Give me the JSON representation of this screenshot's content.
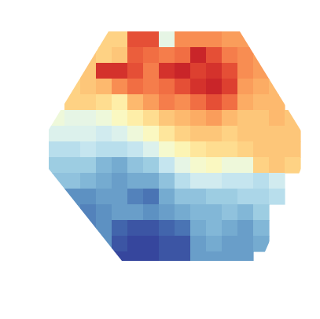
{
  "chart_data": {
    "type": "heatmap",
    "tick_labels": false,
    "zlim": [
      -1,
      1
    ],
    "cells": [
      [
        null,
        null,
        null,
        0.25,
        0.25,
        0.7,
        0.7,
        -0.15,
        0.5,
        0.5,
        0.5,
        0.45,
        0.45,
        null,
        null,
        null
      ],
      [
        null,
        null,
        0.3,
        0.25,
        0.3,
        0.65,
        0.6,
        0.55,
        0.6,
        0.85,
        0.7,
        0.55,
        0.5,
        0.45,
        null,
        null
      ],
      [
        null,
        null,
        0.3,
        0.8,
        0.8,
        0.7,
        0.55,
        0.8,
        0.85,
        0.75,
        0.8,
        0.7,
        0.5,
        0.45,
        null,
        null
      ],
      [
        null,
        0.25,
        0.3,
        0.35,
        0.5,
        0.6,
        0.55,
        0.6,
        0.7,
        0.8,
        0.85,
        0.75,
        0.45,
        0.4,
        0.35,
        null
      ],
      [
        null,
        0.25,
        0.25,
        0.2,
        0.1,
        0.35,
        0.45,
        0.55,
        0.5,
        0.6,
        0.7,
        0.6,
        0.4,
        0.35,
        0.35,
        null
      ],
      [
        -0.1,
        -0.15,
        -0.15,
        -0.1,
        0.0,
        0.1,
        0.2,
        0.3,
        0.35,
        0.4,
        0.45,
        0.35,
        0.3,
        0.3,
        0.35,
        0.3
      ],
      [
        -0.2,
        -0.2,
        -0.2,
        -0.25,
        -0.2,
        -0.1,
        0.0,
        0.15,
        0.25,
        0.3,
        0.3,
        0.25,
        0.3,
        0.3,
        0.3,
        0.3
      ],
      [
        -0.35,
        -0.35,
        -0.3,
        -0.35,
        -0.35,
        -0.3,
        -0.2,
        -0.05,
        0.05,
        0.15,
        0.2,
        0.2,
        0.25,
        0.3,
        0.3,
        0.3
      ],
      [
        -0.45,
        -0.45,
        -0.45,
        -0.55,
        -0.6,
        -0.5,
        -0.45,
        -0.3,
        -0.15,
        -0.05,
        0.0,
        -0.1,
        -0.1,
        0.25,
        0.3,
        0.25
      ],
      [
        -0.5,
        -0.5,
        -0.55,
        -0.6,
        -0.65,
        -0.6,
        -0.6,
        -0.5,
        -0.35,
        -0.25,
        -0.25,
        -0.3,
        -0.3,
        -0.35,
        -0.25,
        null
      ],
      [
        null,
        -0.7,
        -0.7,
        -0.65,
        -0.65,
        -0.75,
        -0.8,
        -0.6,
        -0.5,
        -0.5,
        -0.45,
        -0.45,
        -0.4,
        -0.4,
        -0.35,
        null
      ],
      [
        null,
        -0.7,
        -0.75,
        -0.7,
        -0.65,
        -0.65,
        -0.7,
        -0.65,
        -0.6,
        -0.55,
        -0.55,
        -0.5,
        -0.55,
        -0.45,
        null,
        null
      ],
      [
        null,
        null,
        -0.75,
        -0.7,
        -0.85,
        -0.9,
        -0.9,
        -0.85,
        -0.8,
        -0.6,
        -0.55,
        -0.6,
        -0.65,
        -0.55,
        null,
        null
      ],
      [
        null,
        null,
        null,
        -0.7,
        -0.9,
        -0.95,
        -0.95,
        -0.9,
        -0.9,
        -0.65,
        -0.6,
        -0.65,
        -0.65,
        -0.6,
        null,
        null
      ],
      [
        null,
        null,
        null,
        null,
        -0.95,
        -0.95,
        -0.95,
        -0.9,
        -0.9,
        -0.65,
        -0.65,
        -0.65,
        -0.65,
        null,
        null,
        null
      ]
    ]
  }
}
